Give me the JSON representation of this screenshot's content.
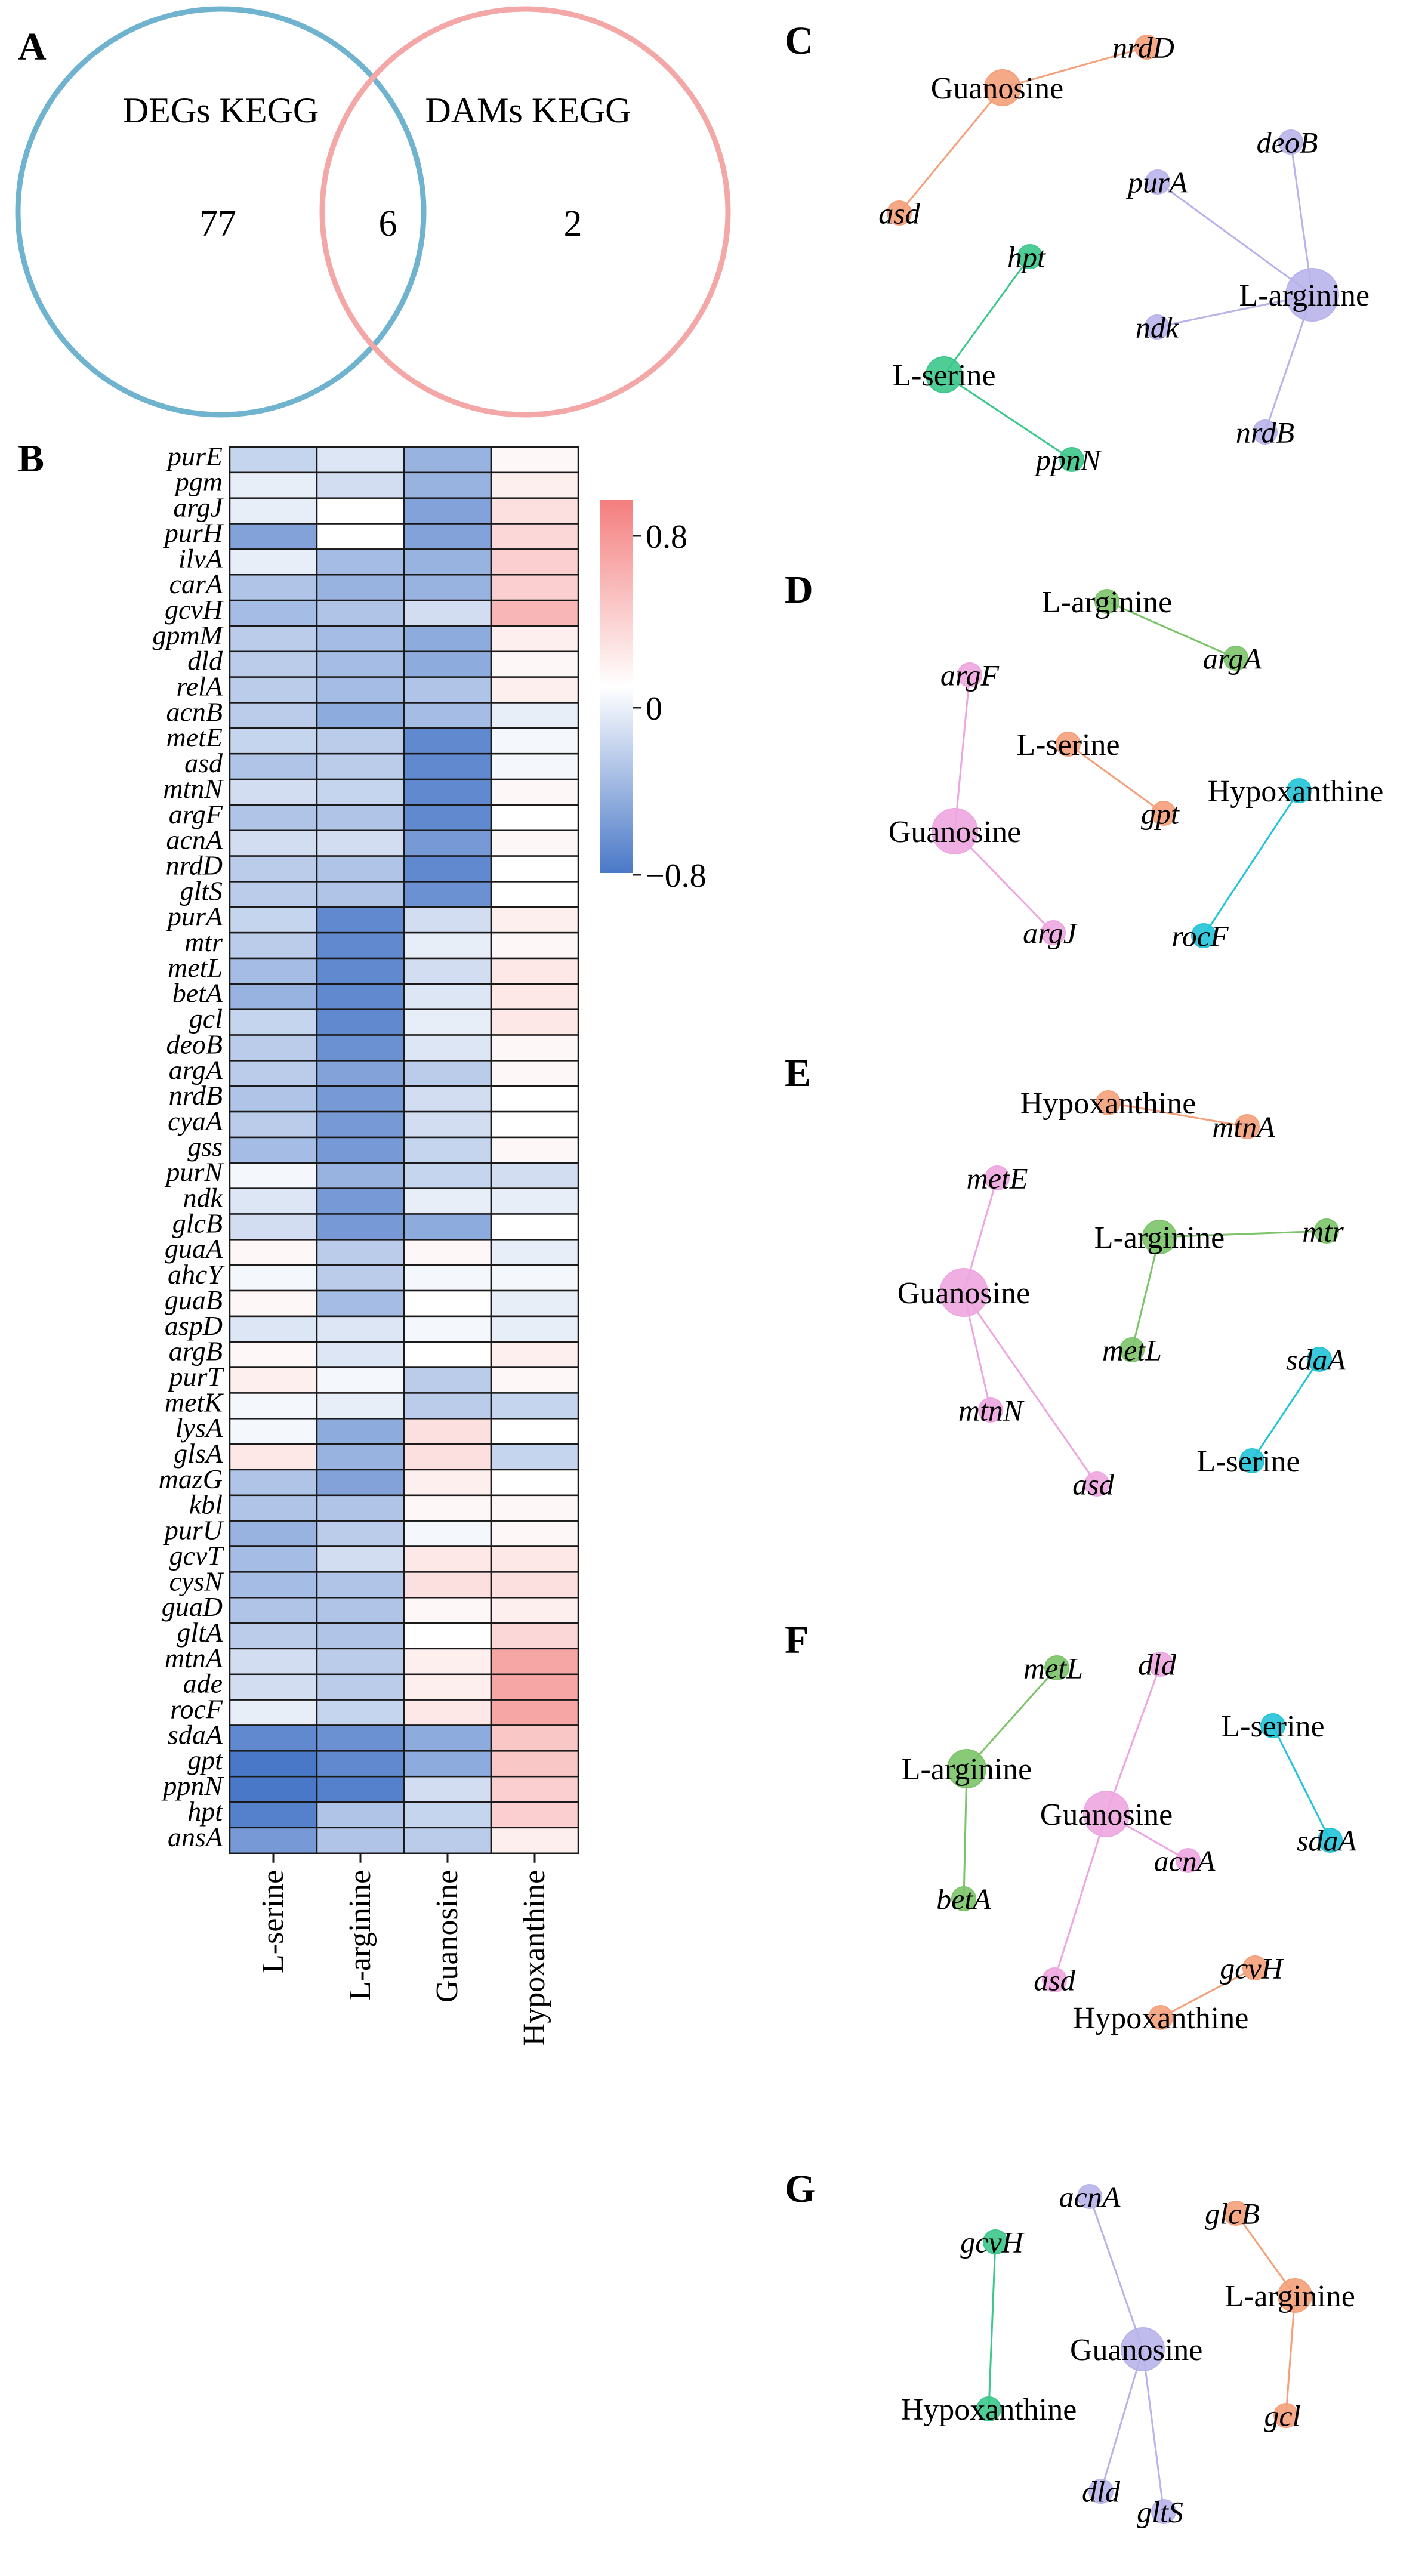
{
  "panels": {
    "A": {
      "label": "A",
      "left_set": "DEGs KEGG",
      "right_set": "DAMs KEGG",
      "left_only": "77",
      "overlap": "6",
      "right_only": "2",
      "colors": {
        "left": "#6fb3cf",
        "right": "#f4a7a7"
      }
    },
    "B": {
      "label": "B",
      "colorbar": {
        "ticks": [
          "0.8",
          "0",
          "−0.8"
        ],
        "range": [
          -0.8,
          0.8
        ],
        "colors": [
          "#4a78c8",
          "#ffffff",
          "#f47e7e"
        ]
      }
    },
    "C": {
      "label": "C"
    },
    "D": {
      "label": "D"
    },
    "E": {
      "label": "E"
    },
    "F": {
      "label": "F"
    },
    "G": {
      "label": "G"
    }
  },
  "chart_data": {
    "type": "heatmap",
    "columns": [
      "L-serine",
      "L-arginine",
      "Guanosine",
      "Hypoxanthine"
    ],
    "rows": [
      "purE",
      "pgm",
      "argJ",
      "purH",
      "ilvA",
      "carA",
      "gcvH",
      "gpmM",
      "dld",
      "relA",
      "acnB",
      "metE",
      "asd",
      "mtnN",
      "argF",
      "acnA",
      "nrdD",
      "gltS",
      "purA",
      "mtr",
      "metL",
      "betA",
      "gcl",
      "deoB",
      "argA",
      "nrdB",
      "cyaA",
      "gss",
      "purN",
      "ndk",
      "glcB",
      "guaA",
      "ahcY",
      "guaB",
      "aspD",
      "argB",
      "purT",
      "metK",
      "lysA",
      "glsA",
      "mazG",
      "kbl",
      "purU",
      "gcvT",
      "cysN",
      "guaD",
      "gltA",
      "mtnA",
      "ade",
      "rocF",
      "sdaA",
      "gpt",
      "ppnN",
      "hpt",
      "ansA"
    ],
    "values": [
      [
        -0.25,
        -0.15,
        -0.45,
        0.05
      ],
      [
        -0.1,
        -0.2,
        -0.45,
        0.1
      ],
      [
        -0.1,
        0.0,
        -0.55,
        0.2
      ],
      [
        -0.55,
        0.0,
        -0.55,
        0.25
      ],
      [
        -0.1,
        -0.4,
        -0.45,
        0.3
      ],
      [
        -0.35,
        -0.45,
        -0.45,
        0.3
      ],
      [
        -0.4,
        -0.35,
        -0.2,
        0.45
      ],
      [
        -0.3,
        -0.4,
        -0.5,
        0.1
      ],
      [
        -0.3,
        -0.4,
        -0.5,
        0.05
      ],
      [
        -0.3,
        -0.4,
        -0.35,
        0.1
      ],
      [
        -0.3,
        -0.5,
        -0.4,
        -0.1
      ],
      [
        -0.25,
        -0.3,
        -0.7,
        -0.05
      ],
      [
        -0.35,
        -0.3,
        -0.7,
        -0.05
      ],
      [
        -0.2,
        -0.25,
        -0.7,
        0.05
      ],
      [
        -0.35,
        -0.35,
        -0.7,
        0.0
      ],
      [
        -0.2,
        -0.2,
        -0.6,
        0.05
      ],
      [
        -0.3,
        -0.35,
        -0.7,
        0.0
      ],
      [
        -0.3,
        -0.35,
        -0.65,
        0.0
      ],
      [
        -0.25,
        -0.7,
        -0.2,
        0.1
      ],
      [
        -0.3,
        -0.7,
        -0.1,
        0.05
      ],
      [
        -0.4,
        -0.7,
        -0.2,
        0.15
      ],
      [
        -0.45,
        -0.7,
        -0.15,
        0.15
      ],
      [
        -0.25,
        -0.7,
        -0.1,
        0.15
      ],
      [
        -0.3,
        -0.65,
        -0.15,
        0.05
      ],
      [
        -0.3,
        -0.55,
        -0.3,
        0.05
      ],
      [
        -0.35,
        -0.6,
        -0.2,
        0.0
      ],
      [
        -0.3,
        -0.6,
        -0.2,
        0.0
      ],
      [
        -0.4,
        -0.6,
        -0.25,
        0.05
      ],
      [
        -0.05,
        -0.45,
        -0.25,
        -0.2
      ],
      [
        -0.15,
        -0.6,
        -0.1,
        -0.1
      ],
      [
        -0.2,
        -0.6,
        -0.5,
        0.0
      ],
      [
        0.05,
        -0.3,
        0.05,
        -0.1
      ],
      [
        -0.05,
        -0.3,
        -0.05,
        -0.05
      ],
      [
        0.05,
        -0.4,
        0.0,
        -0.1
      ],
      [
        -0.15,
        -0.15,
        -0.05,
        -0.1
      ],
      [
        0.05,
        -0.15,
        0.0,
        0.1
      ],
      [
        0.1,
        -0.05,
        -0.3,
        0.05
      ],
      [
        -0.05,
        -0.1,
        -0.3,
        -0.25
      ],
      [
        -0.05,
        -0.5,
        0.2,
        0.0
      ],
      [
        0.15,
        -0.45,
        0.2,
        -0.25
      ],
      [
        -0.35,
        -0.55,
        0.1,
        0.0
      ],
      [
        -0.35,
        -0.35,
        0.05,
        0.05
      ],
      [
        -0.45,
        -0.3,
        -0.05,
        0.05
      ],
      [
        -0.4,
        -0.2,
        0.15,
        0.15
      ],
      [
        -0.4,
        -0.35,
        0.2,
        0.2
      ],
      [
        -0.35,
        -0.35,
        0.05,
        0.1
      ],
      [
        -0.3,
        -0.35,
        0.0,
        0.25
      ],
      [
        -0.2,
        -0.3,
        0.1,
        0.55
      ],
      [
        -0.2,
        -0.3,
        0.1,
        0.55
      ],
      [
        -0.1,
        -0.25,
        0.15,
        0.55
      ],
      [
        -0.7,
        -0.65,
        -0.5,
        0.35
      ],
      [
        -0.8,
        -0.7,
        -0.5,
        0.35
      ],
      [
        -0.8,
        -0.75,
        -0.2,
        0.3
      ],
      [
        -0.75,
        -0.35,
        -0.25,
        0.3
      ],
      [
        -0.6,
        -0.35,
        -0.3,
        0.1
      ]
    ],
    "networks": [
      {
        "panel": "C",
        "nodes": [
          {
            "id": "Guanosine",
            "kind": "metabolite",
            "color": "#f4a07a"
          },
          {
            "id": "nrdD",
            "kind": "gene",
            "color": "#f4a07a"
          },
          {
            "id": "asd",
            "kind": "gene",
            "color": "#f4a07a"
          },
          {
            "id": "L-arginine",
            "kind": "metabolite",
            "color": "#b8b4ea"
          },
          {
            "id": "deoB",
            "kind": "gene",
            "color": "#b8b4ea"
          },
          {
            "id": "purA",
            "kind": "gene",
            "color": "#b8b4ea"
          },
          {
            "id": "ndk",
            "kind": "gene",
            "color": "#b8b4ea"
          },
          {
            "id": "nrdB",
            "kind": "gene",
            "color": "#b8b4ea"
          },
          {
            "id": "L-serine",
            "kind": "metabolite",
            "color": "#3dc78c"
          },
          {
            "id": "hpt",
            "kind": "gene",
            "color": "#3dc78c"
          },
          {
            "id": "ppnN",
            "kind": "gene",
            "color": "#3dc78c"
          }
        ],
        "edges": [
          [
            "Guanosine",
            "nrdD"
          ],
          [
            "Guanosine",
            "asd"
          ],
          [
            "L-arginine",
            "deoB"
          ],
          [
            "L-arginine",
            "purA"
          ],
          [
            "L-arginine",
            "ndk"
          ],
          [
            "L-arginine",
            "nrdB"
          ],
          [
            "L-serine",
            "hpt"
          ],
          [
            "L-serine",
            "ppnN"
          ]
        ]
      },
      {
        "panel": "D",
        "nodes": [
          {
            "id": "L-arginine",
            "kind": "metabolite",
            "color": "#7cc46a"
          },
          {
            "id": "argA",
            "kind": "gene",
            "color": "#7cc46a"
          },
          {
            "id": "Guanosine",
            "kind": "metabolite",
            "color": "#eea6e0"
          },
          {
            "id": "argF",
            "kind": "gene",
            "color": "#eea6e0"
          },
          {
            "id": "argJ",
            "kind": "gene",
            "color": "#eea6e0"
          },
          {
            "id": "L-serine",
            "kind": "metabolite",
            "color": "#f4a07a"
          },
          {
            "id": "gpt",
            "kind": "gene",
            "color": "#f4a07a"
          },
          {
            "id": "Hypoxanthine",
            "kind": "metabolite",
            "color": "#22c4d8"
          },
          {
            "id": "rocF",
            "kind": "gene",
            "color": "#22c4d8"
          }
        ],
        "edges": [
          [
            "L-arginine",
            "argA"
          ],
          [
            "Guanosine",
            "argF"
          ],
          [
            "Guanosine",
            "argJ"
          ],
          [
            "L-serine",
            "gpt"
          ],
          [
            "Hypoxanthine",
            "rocF"
          ]
        ]
      },
      {
        "panel": "E",
        "nodes": [
          {
            "id": "Hypoxanthine",
            "kind": "metabolite",
            "color": "#f4a07a"
          },
          {
            "id": "mtnA",
            "kind": "gene",
            "color": "#f4a07a"
          },
          {
            "id": "Guanosine",
            "kind": "metabolite",
            "color": "#eea6e0"
          },
          {
            "id": "metE",
            "kind": "gene",
            "color": "#eea6e0"
          },
          {
            "id": "mtnN",
            "kind": "gene",
            "color": "#eea6e0"
          },
          {
            "id": "asd",
            "kind": "gene",
            "color": "#eea6e0"
          },
          {
            "id": "L-arginine",
            "kind": "metabolite",
            "color": "#7cc46a"
          },
          {
            "id": "mtr",
            "kind": "gene",
            "color": "#7cc46a"
          },
          {
            "id": "metL",
            "kind": "gene",
            "color": "#7cc46a"
          },
          {
            "id": "L-serine",
            "kind": "metabolite",
            "color": "#22c4d8"
          },
          {
            "id": "sdaA",
            "kind": "gene",
            "color": "#22c4d8"
          }
        ],
        "edges": [
          [
            "Hypoxanthine",
            "mtnA"
          ],
          [
            "Guanosine",
            "metE"
          ],
          [
            "Guanosine",
            "mtnN"
          ],
          [
            "Guanosine",
            "asd"
          ],
          [
            "L-arginine",
            "mtr"
          ],
          [
            "L-arginine",
            "metL"
          ],
          [
            "L-serine",
            "sdaA"
          ]
        ]
      },
      {
        "panel": "F",
        "nodes": [
          {
            "id": "L-arginine",
            "kind": "metabolite",
            "color": "#7cc46a"
          },
          {
            "id": "metL",
            "kind": "gene",
            "color": "#7cc46a"
          },
          {
            "id": "betA",
            "kind": "gene",
            "color": "#7cc46a"
          },
          {
            "id": "Guanosine",
            "kind": "metabolite",
            "color": "#eea6e0"
          },
          {
            "id": "dld",
            "kind": "gene",
            "color": "#eea6e0"
          },
          {
            "id": "acnA",
            "kind": "gene",
            "color": "#eea6e0"
          },
          {
            "id": "asd",
            "kind": "gene",
            "color": "#eea6e0"
          },
          {
            "id": "L-serine",
            "kind": "metabolite",
            "color": "#22c4d8"
          },
          {
            "id": "sdaA",
            "kind": "gene",
            "color": "#22c4d8"
          },
          {
            "id": "Hypoxanthine",
            "kind": "metabolite",
            "color": "#f4a07a"
          },
          {
            "id": "gcvH",
            "kind": "gene",
            "color": "#f4a07a"
          }
        ],
        "edges": [
          [
            "L-arginine",
            "metL"
          ],
          [
            "L-arginine",
            "betA"
          ],
          [
            "Guanosine",
            "dld"
          ],
          [
            "Guanosine",
            "acnA"
          ],
          [
            "Guanosine",
            "asd"
          ],
          [
            "L-serine",
            "sdaA"
          ],
          [
            "Hypoxanthine",
            "gcvH"
          ]
        ]
      },
      {
        "panel": "G",
        "nodes": [
          {
            "id": "Guanosine",
            "kind": "metabolite",
            "color": "#b8b4ea"
          },
          {
            "id": "acnA",
            "kind": "gene",
            "color": "#b8b4ea"
          },
          {
            "id": "dld",
            "kind": "gene",
            "color": "#b8b4ea"
          },
          {
            "id": "gltS",
            "kind": "gene",
            "color": "#b8b4ea"
          },
          {
            "id": "L-arginine",
            "kind": "metabolite",
            "color": "#f4a07a"
          },
          {
            "id": "glcB",
            "kind": "gene",
            "color": "#f4a07a"
          },
          {
            "id": "gcl",
            "kind": "gene",
            "color": "#f4a07a"
          },
          {
            "id": "Hypoxanthine",
            "kind": "metabolite",
            "color": "#3dc78c"
          },
          {
            "id": "gcvH",
            "kind": "gene",
            "color": "#3dc78c"
          }
        ],
        "edges": [
          [
            "Guanosine",
            "acnA"
          ],
          [
            "Guanosine",
            "dld"
          ],
          [
            "Guanosine",
            "gltS"
          ],
          [
            "L-arginine",
            "glcB"
          ],
          [
            "L-arginine",
            "gcl"
          ],
          [
            "Hypoxanthine",
            "gcvH"
          ]
        ]
      }
    ]
  }
}
